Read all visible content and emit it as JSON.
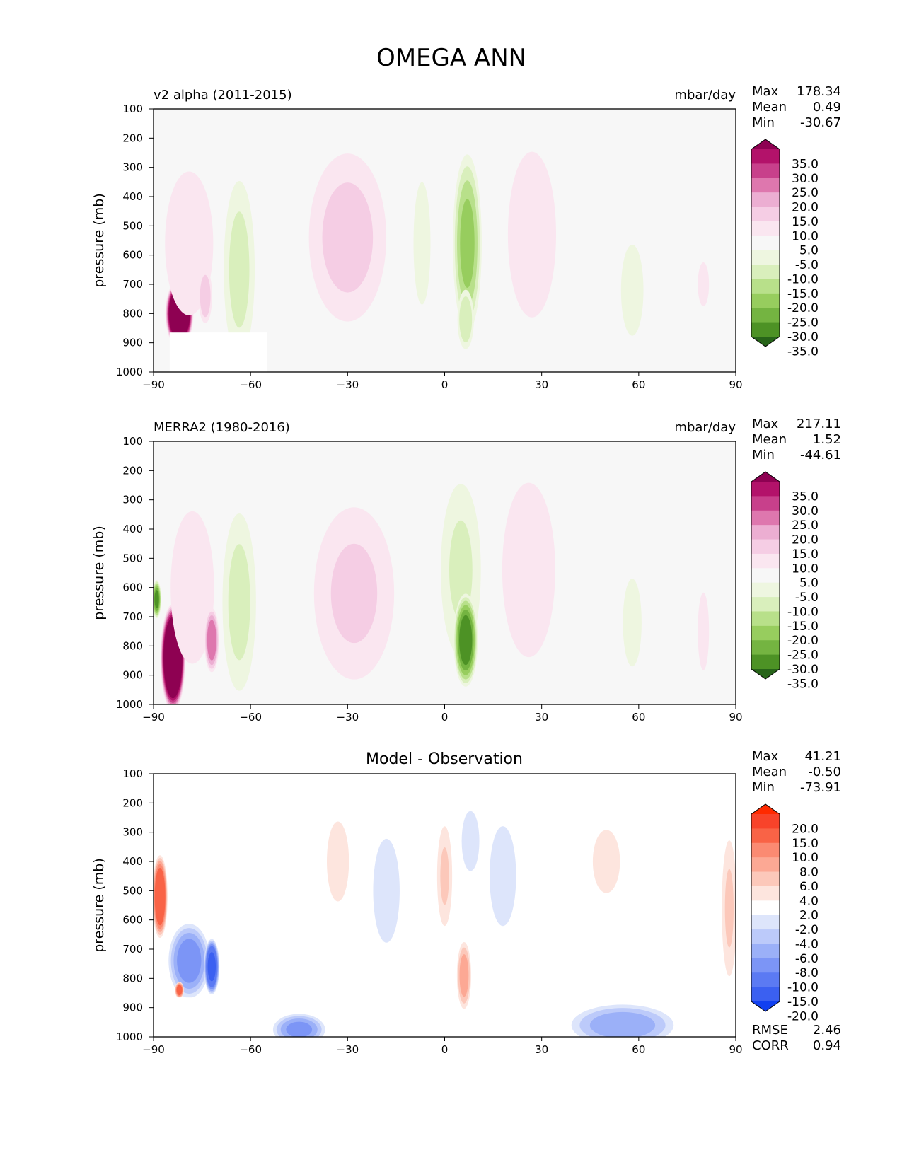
{
  "figure_title": "OMEGA ANN",
  "chart_data": [
    {
      "type": "heatmap",
      "panel": "test",
      "left_title": "v2 alpha (2011-2015)",
      "center_title": "",
      "units": "mbar/day",
      "ylabel": "pressure (mb)",
      "xlim": [
        -90,
        90
      ],
      "ylim": [
        1000,
        100
      ],
      "xticks": [
        -90,
        -60,
        -30,
        0,
        30,
        60,
        90
      ],
      "yticks": [
        100,
        200,
        300,
        400,
        500,
        600,
        700,
        800,
        900,
        1000
      ],
      "stats": [
        {
          "label": "Max",
          "value": "178.34"
        },
        {
          "label": "Mean",
          "value": "0.49"
        },
        {
          "label": "Min",
          "value": "-30.67"
        }
      ],
      "colorbar": {
        "labels": [
          "35.0",
          "30.0",
          "25.0",
          "20.0",
          "15.0",
          "10.0",
          "5.0",
          "-5.0",
          "-10.0",
          "-15.0",
          "-20.0",
          "-25.0",
          "-30.0",
          "-35.0"
        ],
        "colors": [
          "#8e0152",
          "#b3126a",
          "#c8408b",
          "#de77ae",
          "#ecaed2",
          "#f5cde4",
          "#fae6f0",
          "#f7f7f7",
          "#eef6e0",
          "#d9efbc",
          "#b8e08a",
          "#97cd5e",
          "#74b441",
          "#4d9225",
          "#276419"
        ]
      },
      "missing_regions": [
        {
          "lon": [
            -85,
            -55
          ],
          "p": [
            865,
            1000
          ]
        }
      ],
      "features": [
        {
          "lon": -82,
          "p": 800,
          "wlon": 4.5,
          "wp": 120,
          "value": 60
        },
        {
          "lon": -79,
          "p": 560,
          "wlon": 10,
          "wp": 330,
          "value": 9
        },
        {
          "lon": -74,
          "p": 740,
          "wlon": 2.5,
          "wp": 110,
          "value": 14
        },
        {
          "lon": -63.5,
          "p": 650,
          "wlon": 6,
          "wp": 380,
          "value": -11
        },
        {
          "lon": -30,
          "p": 540,
          "wlon": 15,
          "wp": 360,
          "value": 11
        },
        {
          "lon": -7,
          "p": 560,
          "wlon": 4,
          "wp": 320,
          "value": -7
        },
        {
          "lon": 7,
          "p": 560,
          "wlon": 5,
          "wp": 340,
          "value": -20
        },
        {
          "lon": 6.5,
          "p": 820,
          "wlon": 3,
          "wp": 120,
          "value": -14
        },
        {
          "lon": 27,
          "p": 530,
          "wlon": 10,
          "wp": 380,
          "value": 9
        },
        {
          "lon": 58,
          "p": 720,
          "wlon": 6,
          "wp": 270,
          "value": -6
        },
        {
          "lon": 80,
          "p": 700,
          "wlon": 3,
          "wp": 130,
          "value": 6
        }
      ]
    },
    {
      "type": "heatmap",
      "panel": "reference",
      "left_title": "MERRA2 (1980-2016)",
      "center_title": "",
      "units": "mbar/day",
      "ylabel": "pressure (mb)",
      "xlim": [
        -90,
        90
      ],
      "ylim": [
        1000,
        100
      ],
      "xticks": [
        -90,
        -60,
        -30,
        0,
        30,
        60,
        90
      ],
      "yticks": [
        100,
        200,
        300,
        400,
        500,
        600,
        700,
        800,
        900,
        1000
      ],
      "stats": [
        {
          "label": "Max",
          "value": "217.11"
        },
        {
          "label": "Mean",
          "value": "1.52"
        },
        {
          "label": "Min",
          "value": "-44.61"
        }
      ],
      "colorbar": {
        "labels": [
          "35.0",
          "30.0",
          "25.0",
          "20.0",
          "15.0",
          "10.0",
          "5.0",
          "-5.0",
          "-10.0",
          "-15.0",
          "-20.0",
          "-25.0",
          "-30.0",
          "-35.0"
        ],
        "colors": [
          "#8e0152",
          "#b3126a",
          "#c8408b",
          "#de77ae",
          "#ecaed2",
          "#f5cde4",
          "#fae6f0",
          "#f7f7f7",
          "#eef6e0",
          "#d9efbc",
          "#b8e08a",
          "#97cd5e",
          "#74b441",
          "#4d9225",
          "#276419"
        ]
      },
      "missing_regions": [],
      "features": [
        {
          "lon": -84,
          "p": 840,
          "wlon": 4,
          "wp": 190,
          "value": 60
        },
        {
          "lon": -78,
          "p": 600,
          "wlon": 9,
          "wp": 350,
          "value": 9
        },
        {
          "lon": -72,
          "p": 780,
          "wlon": 2.5,
          "wp": 120,
          "value": 24
        },
        {
          "lon": -89,
          "p": 640,
          "wlon": 1.5,
          "wp": 70,
          "value": -30
        },
        {
          "lon": -63.5,
          "p": 650,
          "wlon": 6.5,
          "wp": 380,
          "value": -11
        },
        {
          "lon": -28,
          "p": 620,
          "wlon": 16,
          "wp": 380,
          "value": 10
        },
        {
          "lon": 5,
          "p": 540,
          "wlon": 8,
          "wp": 380,
          "value": -10
        },
        {
          "lon": 6.5,
          "p": 780,
          "wlon": 4,
          "wp": 170,
          "value": -32
        },
        {
          "lon": 26,
          "p": 540,
          "wlon": 11,
          "wp": 400,
          "value": 9
        },
        {
          "lon": 58,
          "p": 720,
          "wlon": 5,
          "wp": 260,
          "value": -6
        },
        {
          "lon": 80,
          "p": 750,
          "wlon": 3,
          "wp": 230,
          "value": 6
        }
      ]
    },
    {
      "type": "heatmap",
      "panel": "difference",
      "left_title": "",
      "center_title": "Model - Observation",
      "units": "",
      "ylabel": "pressure (mb)",
      "xlim": [
        -90,
        90
      ],
      "ylim": [
        1000,
        100
      ],
      "xticks": [
        -90,
        -60,
        -30,
        0,
        30,
        60,
        90
      ],
      "yticks": [
        100,
        200,
        300,
        400,
        500,
        600,
        700,
        800,
        900,
        1000
      ],
      "stats": [
        {
          "label": "Max",
          "value": "41.21"
        },
        {
          "label": "Mean",
          "value": "-0.50"
        },
        {
          "label": "Min",
          "value": "-73.91"
        }
      ],
      "extra_stats": [
        {
          "label": "RMSE",
          "value": "2.46"
        },
        {
          "label": "CORR",
          "value": "0.94"
        }
      ],
      "colorbar": {
        "labels": [
          "20.0",
          "15.0",
          "10.0",
          "8.0",
          "6.0",
          "4.0",
          "2.0",
          "-2.0",
          "-4.0",
          "-6.0",
          "-8.0",
          "-10.0",
          "-15.0",
          "-20.0"
        ],
        "colors": [
          "#ff2a00",
          "#f8432a",
          "#f96346",
          "#fb8a72",
          "#fca894",
          "#fcc8ba",
          "#fde5de",
          "#ffffff",
          "#dde5fb",
          "#bccafa",
          "#9bb0f8",
          "#7c95f6",
          "#5b7af3",
          "#3b60f1",
          "#1140f0"
        ]
      },
      "missing_regions": [
        {
          "lon": [
            -85,
            -55
          ],
          "p": [
            865,
            1000
          ]
        }
      ],
      "features": [
        {
          "lon": -88,
          "p": 520,
          "wlon": 2.5,
          "wp": 150,
          "value": 14
        },
        {
          "lon": -79,
          "p": 740,
          "wlon": 7,
          "wp": 140,
          "value": -9
        },
        {
          "lon": -72,
          "p": 760,
          "wlon": 2.5,
          "wp": 100,
          "value": -16
        },
        {
          "lon": -82,
          "p": 840,
          "wlon": 1.5,
          "wp": 30,
          "value": 12
        },
        {
          "lon": -33,
          "p": 400,
          "wlon": 5,
          "wp": 200,
          "value": 3
        },
        {
          "lon": -18,
          "p": 500,
          "wlon": 6,
          "wp": 260,
          "value": -3
        },
        {
          "lon": 0,
          "p": 450,
          "wlon": 3,
          "wp": 220,
          "value": 4
        },
        {
          "lon": 6,
          "p": 790,
          "wlon": 2.5,
          "wp": 130,
          "value": 7
        },
        {
          "lon": 8,
          "p": 330,
          "wlon": 4,
          "wp": 150,
          "value": -3
        },
        {
          "lon": 18,
          "p": 450,
          "wlon": 6,
          "wp": 250,
          "value": -3
        },
        {
          "lon": 55,
          "p": 960,
          "wlon": 18,
          "wp": 80,
          "value": -7
        },
        {
          "lon": -45,
          "p": 975,
          "wlon": 9,
          "wp": 60,
          "value": -8
        },
        {
          "lon": 50,
          "p": 400,
          "wlon": 7,
          "wp": 180,
          "value": 2.5
        },
        {
          "lon": 88,
          "p": 560,
          "wlon": 3,
          "wp": 300,
          "value": 4
        }
      ]
    }
  ]
}
